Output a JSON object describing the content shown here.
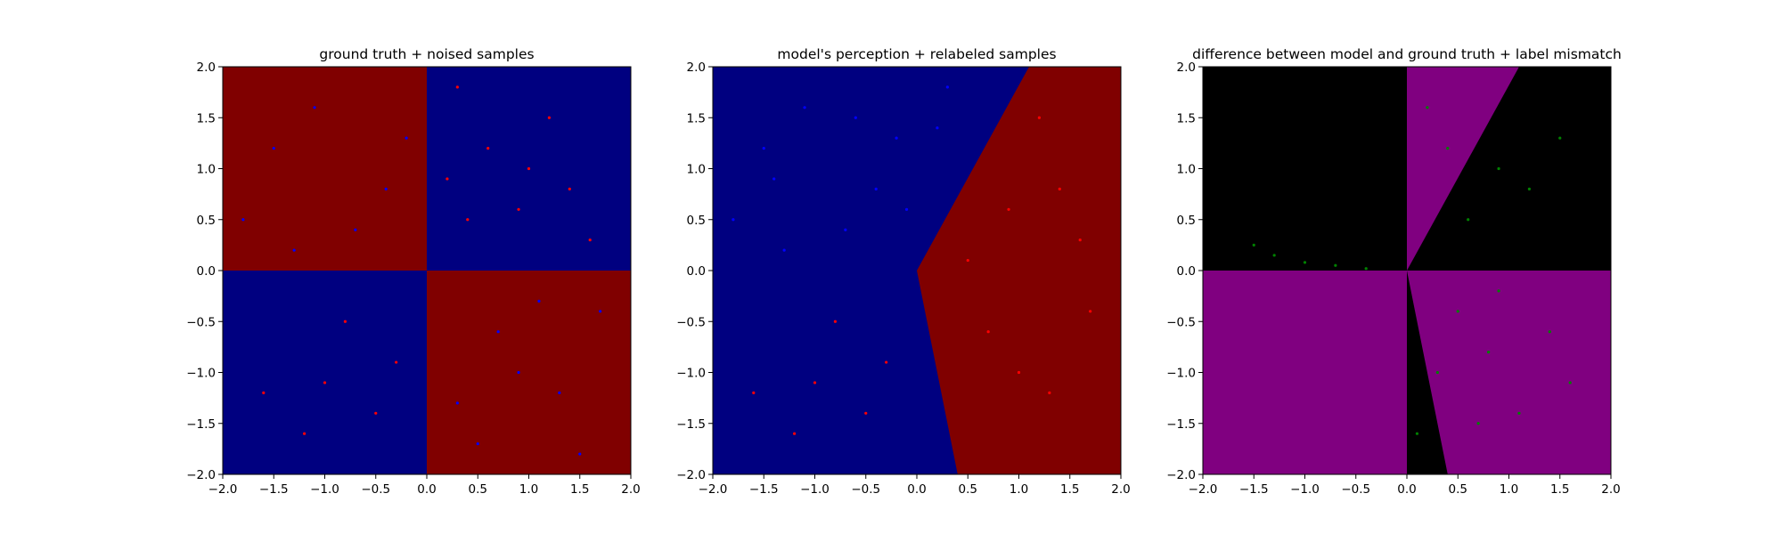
{
  "chart_data": [
    {
      "type": "scatter",
      "title": "ground truth + noised samples",
      "xlim": [
        -2.0,
        2.0
      ],
      "ylim": [
        -2.0,
        2.0
      ],
      "xticks": [
        "−2.0",
        "−1.5",
        "−1.0",
        "−0.5",
        "0.0",
        "0.5",
        "1.0",
        "1.5",
        "2.0"
      ],
      "yticks": [
        "−2.0",
        "−1.5",
        "−1.0",
        "−0.5",
        "0.0",
        "0.5",
        "1.0",
        "1.5",
        "2.0"
      ],
      "background": {
        "description_rule": "red where x*y<0 (quadrants 2 and 4), blue where x*y>0 (quadrants 1 and 3)",
        "region_colors": {
          "class_red": "#800000",
          "class_blue": "#000080"
        }
      },
      "series": [
        {
          "color": "#ff0000",
          "points": [
            [
              0.3,
              1.8
            ],
            [
              0.6,
              1.2
            ],
            [
              0.9,
              0.6
            ],
            [
              1.2,
              1.5
            ],
            [
              1.6,
              0.3
            ],
            [
              0.4,
              0.5
            ],
            [
              1.0,
              1.0
            ],
            [
              -1.2,
              -1.6
            ],
            [
              -0.8,
              -0.5
            ],
            [
              -1.6,
              -1.2
            ],
            [
              -0.3,
              -0.9
            ],
            [
              -1.0,
              -1.1
            ],
            [
              0.2,
              0.9
            ],
            [
              1.4,
              0.8
            ],
            [
              -0.5,
              -1.4
            ]
          ]
        },
        {
          "color": "#0000ff",
          "points": [
            [
              -1.5,
              1.2
            ],
            [
              -0.7,
              0.4
            ],
            [
              -1.1,
              1.6
            ],
            [
              -0.4,
              0.8
            ],
            [
              -1.8,
              0.5
            ],
            [
              0.7,
              -0.6
            ],
            [
              1.3,
              -1.2
            ],
            [
              0.5,
              -1.7
            ],
            [
              1.7,
              -0.4
            ],
            [
              0.9,
              -1.0
            ],
            [
              -0.2,
              1.3
            ],
            [
              -1.3,
              0.2
            ],
            [
              1.1,
              -0.3
            ],
            [
              0.3,
              -1.3
            ],
            [
              1.5,
              -1.8
            ]
          ]
        }
      ]
    },
    {
      "type": "scatter",
      "title": "model's perception + relabeled samples",
      "xlim": [
        -2.0,
        2.0
      ],
      "ylim": [
        -2.0,
        2.0
      ],
      "xticks": [
        "−2.0",
        "−1.5",
        "−1.0",
        "−0.5",
        "0.0",
        "0.5",
        "1.0",
        "1.5",
        "2.0"
      ],
      "yticks": [
        "−2.0",
        "−1.5",
        "−1.0",
        "−0.5",
        "0.0",
        "0.5",
        "1.0",
        "1.5",
        "2.0"
      ],
      "background": {
        "description_rule": "red region to the right of the boundary through (1.1,2.0), (0,0), (0.4,-2.0); blue elsewhere",
        "region_colors": {
          "class_red": "#800000",
          "class_blue": "#000080"
        }
      },
      "series": [
        {
          "color": "#0000ff",
          "points": [
            [
              -1.5,
              1.2
            ],
            [
              -0.7,
              0.4
            ],
            [
              -1.1,
              1.6
            ],
            [
              -0.4,
              0.8
            ],
            [
              -1.8,
              0.5
            ],
            [
              -0.2,
              1.3
            ],
            [
              -1.3,
              0.2
            ],
            [
              0.3,
              1.8
            ],
            [
              -0.6,
              1.5
            ],
            [
              -0.1,
              0.6
            ],
            [
              0.2,
              1.4
            ],
            [
              -1.4,
              0.9
            ]
          ]
        },
        {
          "color": "#ff0000",
          "points": [
            [
              0.7,
              -0.6
            ],
            [
              1.3,
              -1.2
            ],
            [
              0.9,
              0.6
            ],
            [
              1.2,
              1.5
            ],
            [
              1.6,
              0.3
            ],
            [
              1.0,
              -1.0
            ],
            [
              1.7,
              -0.4
            ],
            [
              0.5,
              0.1
            ],
            [
              -0.8,
              -0.5
            ],
            [
              -1.2,
              -1.6
            ],
            [
              -1.6,
              -1.2
            ],
            [
              -0.3,
              -0.9
            ],
            [
              -1.0,
              -1.1
            ],
            [
              1.4,
              0.8
            ],
            [
              -0.5,
              -1.4
            ]
          ]
        }
      ]
    },
    {
      "type": "scatter",
      "title": "difference between model and ground truth + label mismatch",
      "xlim": [
        -2.0,
        2.0
      ],
      "ylim": [
        -2.0,
        2.0
      ],
      "xticks": [
        "−2.0",
        "−1.5",
        "−1.0",
        "−0.5",
        "0.0",
        "0.5",
        "1.0",
        "1.5",
        "2.0"
      ],
      "yticks": [
        "−2.0",
        "−1.5",
        "−1.0",
        "−0.5",
        "0.0",
        "0.5",
        "1.0",
        "1.5",
        "2.0"
      ],
      "background": {
        "description_rule": "purple where model and ground truth disagree, black where they agree",
        "region_colors": {
          "agree": "#000000",
          "disagree": "#800080"
        }
      },
      "series": [
        {
          "color": "#008000",
          "points": [
            [
              -1.5,
              0.25
            ],
            [
              -1.3,
              0.15
            ],
            [
              -1.0,
              0.08
            ],
            [
              -0.7,
              0.05
            ],
            [
              -0.4,
              0.02
            ],
            [
              0.2,
              1.6
            ],
            [
              0.4,
              1.2
            ],
            [
              0.6,
              0.5
            ],
            [
              0.9,
              1.0
            ],
            [
              1.2,
              0.8
            ],
            [
              1.5,
              1.3
            ],
            [
              0.5,
              -0.4
            ],
            [
              0.8,
              -0.8
            ],
            [
              1.1,
              -1.4
            ],
            [
              0.3,
              -1.0
            ],
            [
              1.4,
              -0.6
            ],
            [
              0.1,
              -1.6
            ],
            [
              0.7,
              -1.5
            ],
            [
              1.6,
              -1.1
            ],
            [
              0.9,
              -0.2
            ]
          ]
        }
      ]
    }
  ]
}
